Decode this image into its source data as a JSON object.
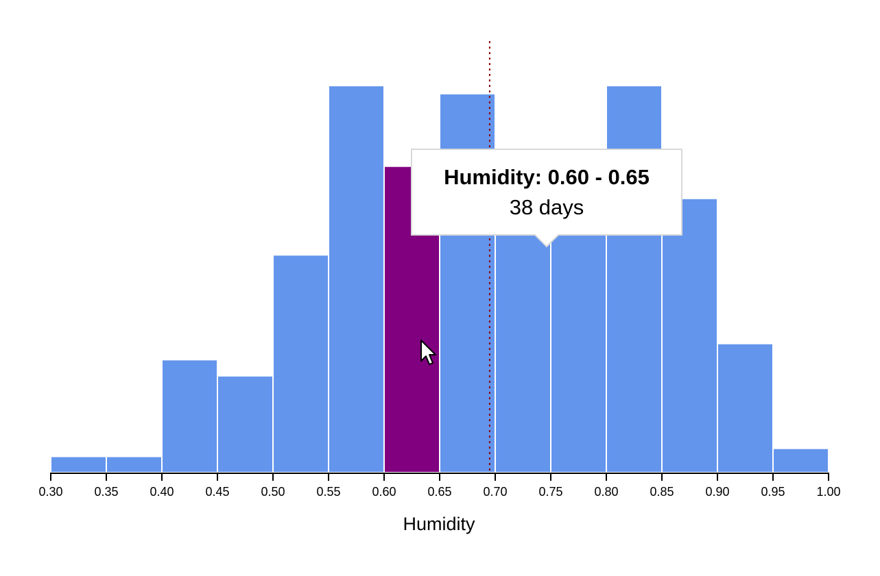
{
  "chart_data": {
    "type": "bar",
    "xlabel": "Humidity",
    "bin_width": 0.05,
    "xlim": [
      0.3,
      1.0
    ],
    "ylim": [
      0,
      48
    ],
    "grid": false,
    "x_ticks": [
      "0.30",
      "0.35",
      "0.40",
      "0.45",
      "0.50",
      "0.55",
      "0.60",
      "0.65",
      "0.70",
      "0.75",
      "0.80",
      "0.85",
      "0.90",
      "0.95",
      "1.00"
    ],
    "bins": [
      {
        "x0": 0.3,
        "x1": 0.35,
        "count": 2
      },
      {
        "x0": 0.35,
        "x1": 0.4,
        "count": 2
      },
      {
        "x0": 0.4,
        "x1": 0.45,
        "count": 14
      },
      {
        "x0": 0.45,
        "x1": 0.5,
        "count": 12
      },
      {
        "x0": 0.5,
        "x1": 0.55,
        "count": 27
      },
      {
        "x0": 0.55,
        "x1": 0.6,
        "count": 48
      },
      {
        "x0": 0.6,
        "x1": 0.65,
        "count": 38
      },
      {
        "x0": 0.65,
        "x1": 0.7,
        "count": 47
      },
      {
        "x0": 0.7,
        "x1": 0.75,
        "count": 40
      },
      {
        "x0": 0.75,
        "x1": 0.8,
        "count": 40
      },
      {
        "x0": 0.8,
        "x1": 0.85,
        "count": 48
      },
      {
        "x0": 0.85,
        "x1": 0.9,
        "count": 34
      },
      {
        "x0": 0.9,
        "x1": 0.95,
        "count": 16
      },
      {
        "x0": 0.95,
        "x1": 1.0,
        "count": 3
      }
    ],
    "highlighted_bin": 6,
    "reference_line_x": 0.695,
    "colors": {
      "bar": "#6495ed",
      "bar_highlight": "#800080",
      "bar_stroke": "#ffffff",
      "reference_line": "#8b0000",
      "axis": "#000000"
    }
  },
  "tooltip": {
    "title": "Humidity: 0.60 - 0.65",
    "value": "38 days"
  },
  "cursor": {
    "icon": "arrow-cursor-icon"
  }
}
